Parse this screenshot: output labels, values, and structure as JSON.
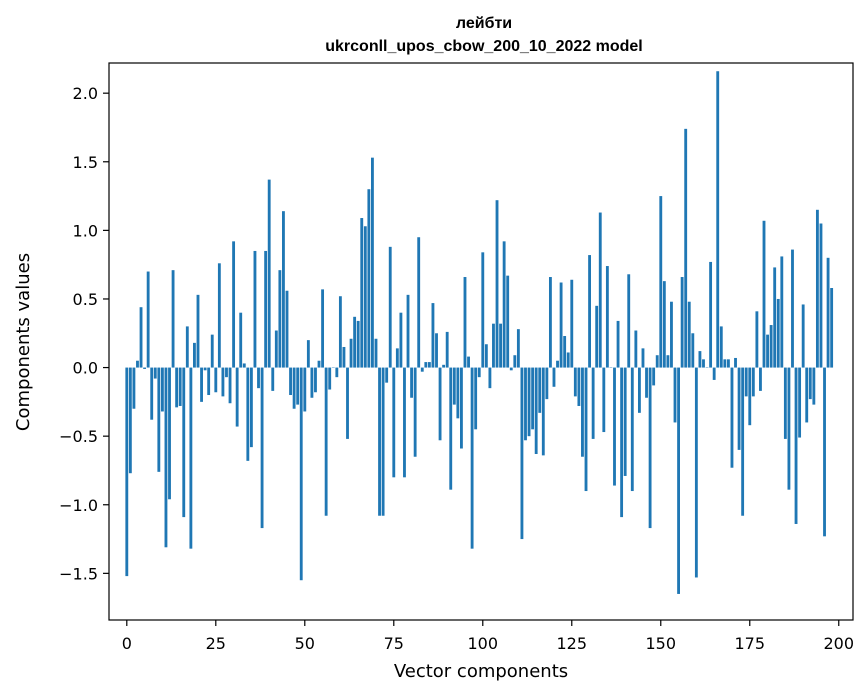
{
  "chart_data": {
    "type": "bar",
    "title": "лейбти",
    "subtitle": "ukrconll_upos_cbow_200_10_2022 model",
    "xlabel": "Vector components",
    "ylabel": "Components values",
    "xlim": [
      -5,
      204
    ],
    "ylim": [
      -1.84,
      2.22
    ],
    "xticks": [
      0,
      25,
      50,
      75,
      100,
      125,
      150,
      175,
      200
    ],
    "yticks": [
      -1.5,
      -1.0,
      -0.5,
      0.0,
      0.5,
      1.0,
      1.5,
      2.0
    ],
    "ytick_labels": [
      "−1.5",
      "−1.0",
      "−0.5",
      "0.0",
      "0.5",
      "1.0",
      "1.5",
      "2.0"
    ],
    "bar_color": "#1f77b4",
    "bar_width": 0.8,
    "grid": false,
    "values": [
      -1.52,
      -0.77,
      -0.3,
      0.05,
      0.44,
      -0.01,
      0.7,
      -0.38,
      -0.08,
      -0.76,
      -0.32,
      -1.31,
      -0.96,
      0.71,
      -0.29,
      -0.28,
      -1.09,
      0.3,
      -1.32,
      0.18,
      0.53,
      -0.25,
      -0.02,
      -0.2,
      0.24,
      -0.18,
      0.76,
      -0.21,
      -0.07,
      -0.26,
      0.92,
      -0.43,
      0.4,
      0.03,
      -0.68,
      -0.58,
      0.85,
      -0.15,
      -1.17,
      0.85,
      1.37,
      -0.17,
      0.27,
      0.71,
      1.14,
      0.56,
      -0.2,
      -0.3,
      -0.27,
      -1.55,
      -0.32,
      0.2,
      -0.22,
      -0.18,
      0.05,
      0.57,
      -1.08,
      -0.16,
      0.0,
      -0.07,
      0.52,
      0.15,
      -0.52,
      0.21,
      0.37,
      0.34,
      1.09,
      1.03,
      1.3,
      1.53,
      0.21,
      -1.08,
      -1.08,
      -0.11,
      0.88,
      -0.8,
      0.14,
      0.4,
      -0.8,
      0.53,
      -0.22,
      -0.65,
      0.95,
      -0.03,
      0.04,
      0.04,
      0.47,
      0.25,
      -0.53,
      0.02,
      0.26,
      -0.89,
      -0.27,
      -0.37,
      -0.59,
      0.66,
      0.08,
      -1.32,
      -0.45,
      -0.07,
      0.84,
      0.17,
      -0.15,
      0.32,
      1.22,
      0.32,
      0.92,
      0.67,
      -0.02,
      0.09,
      0.28,
      -1.25,
      -0.53,
      -0.5,
      -0.45,
      -0.63,
      -0.33,
      -0.64,
      -0.23,
      0.66,
      -0.14,
      0.05,
      0.62,
      0.23,
      0.11,
      0.64,
      -0.21,
      -0.28,
      -0.65,
      -0.9,
      0.82,
      -0.52,
      0.45,
      1.13,
      -0.47,
      0.74,
      0.0,
      -0.86,
      0.34,
      -1.09,
      -0.79,
      0.68,
      -0.9,
      0.27,
      -0.33,
      0.14,
      -0.22,
      -1.17,
      -0.13,
      0.09,
      1.25,
      0.63,
      0.09,
      0.48,
      -0.4,
      -1.65,
      0.66,
      1.74,
      0.48,
      0.25,
      -1.53,
      0.12,
      0.06,
      0.0,
      0.77,
      -0.09,
      2.16,
      0.3,
      0.06,
      0.06,
      -0.73,
      0.07,
      -0.6,
      -1.08,
      -0.21,
      -0.42,
      -0.21,
      0.41,
      -0.17,
      1.07,
      0.24,
      0.31,
      0.73,
      0.5,
      0.81,
      -0.52,
      -0.89,
      0.86,
      -1.14,
      -0.51,
      0.46,
      -0.4,
      -0.23,
      -0.27,
      1.15,
      1.05,
      -1.23,
      0.8,
      0.58
    ]
  }
}
